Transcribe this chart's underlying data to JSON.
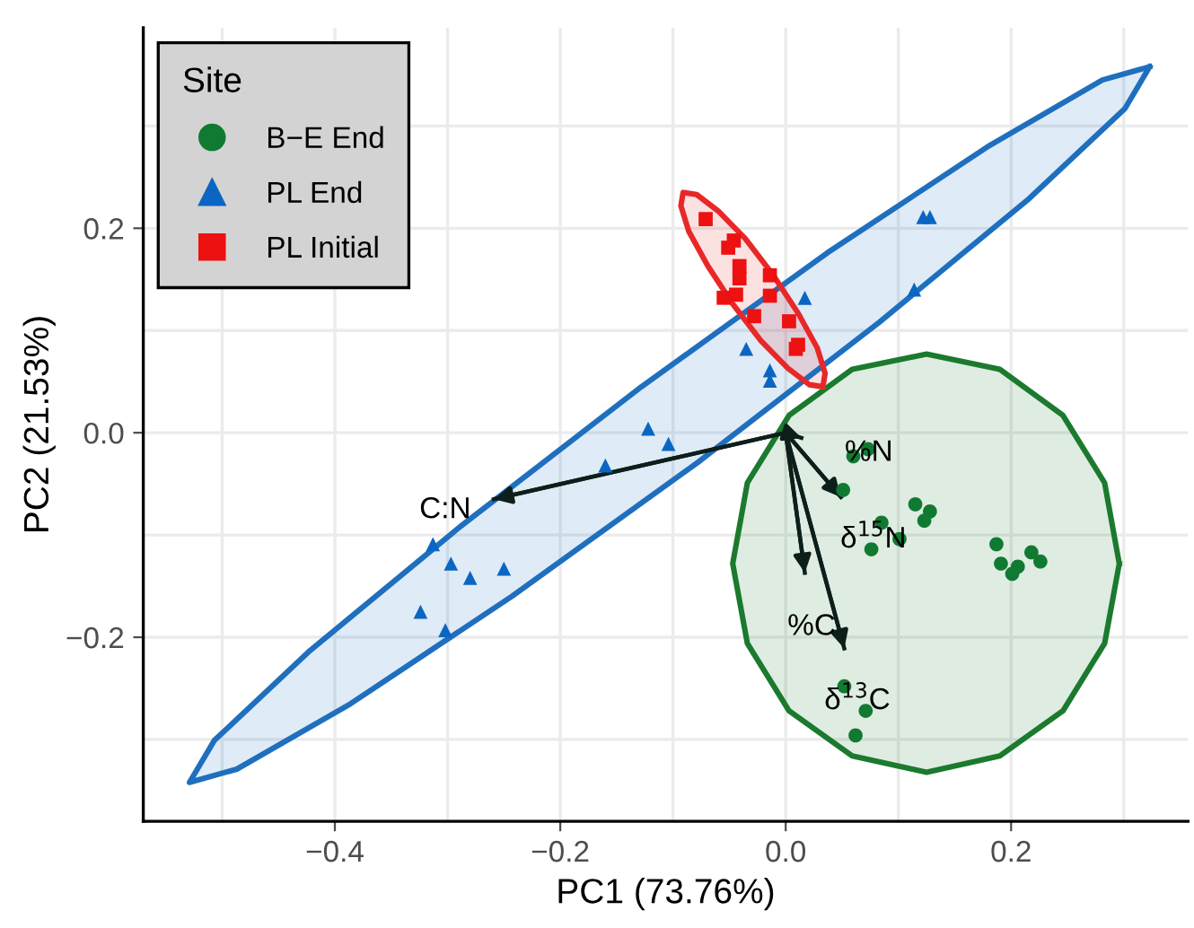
{
  "chart_data": {
    "type": "scatter",
    "xlabel": "PC1 (73.76%)",
    "ylabel": "PC2 (21.53%)",
    "legend_title": "Site",
    "xlim": [
      -0.57,
      0.357
    ],
    "ylim": [
      -0.38,
      0.396
    ],
    "xticks": [
      {
        "value": -0.4,
        "label": "−0.4"
      },
      {
        "value": -0.2,
        "label": "−0.2"
      },
      {
        "value": 0,
        "label": "0.0"
      },
      0.2
    ],
    "yticks": [
      {
        "value": -0.2,
        "label": "−0.2"
      },
      {
        "value": 0,
        "label": "0.0"
      },
      0.2
    ],
    "grid": true,
    "legend": "top left",
    "series": [
      {
        "type": "area",
        "color": "#1f6fbf",
        "x": [
          0.323,
          0.281,
          0.181,
          0.037,
          -0.128,
          -0.289,
          -0.422,
          -0.507,
          -0.529,
          -0.487,
          -0.386,
          -0.243,
          -0.078,
          0.083,
          0.216,
          0.301,
          0.323
        ],
        "values": [
          0.358,
          0.345,
          0.281,
          0.176,
          0.045,
          -0.092,
          -0.213,
          -0.301,
          -0.342,
          -0.329,
          -0.265,
          -0.16,
          -0.029,
          0.108,
          0.229,
          0.317,
          0.358
        ]
      },
      {
        "type": "area",
        "color": "#1b7a2e",
        "x": [
          0.296,
          0.283,
          0.246,
          0.19,
          0.125,
          0.059,
          0.003,
          -0.034,
          -0.047,
          -0.034,
          0.003,
          0.059,
          0.125,
          0.19,
          0.246,
          0.283,
          0.296
        ],
        "values": [
          -0.128,
          -0.049,
          0.017,
          0.062,
          0.077,
          0.062,
          0.017,
          -0.049,
          -0.128,
          -0.206,
          -0.272,
          -0.316,
          -0.332,
          -0.316,
          -0.272,
          -0.206,
          -0.128
        ]
      },
      {
        "type": "area",
        "color": "#e82828",
        "x": [
          0.033,
          0.035,
          0.028,
          0.011,
          -0.011,
          -0.036,
          -0.06,
          -0.079,
          -0.091,
          -0.093,
          -0.086,
          -0.069,
          -0.047,
          -0.022,
          0.002,
          0.021,
          0.033
        ],
        "values": [
          0.045,
          0.058,
          0.083,
          0.117,
          0.154,
          0.19,
          0.217,
          0.233,
          0.235,
          0.222,
          0.197,
          0.163,
          0.126,
          0.09,
          0.063,
          0.047,
          0.045
        ]
      },
      {
        "name": "B−E End",
        "marker": "circle",
        "color": "#117a32",
        "x": [
          0.06,
          0.073,
          0.051,
          0.085,
          0.076,
          0.101,
          0.115,
          0.128,
          0.123,
          0.187,
          0.191,
          0.201,
          0.206,
          0.218,
          0.226,
          0.052,
          0.071,
          0.062
        ],
        "values": [
          -0.023,
          -0.016,
          -0.056,
          -0.088,
          -0.114,
          -0.104,
          -0.07,
          -0.077,
          -0.086,
          -0.109,
          -0.128,
          -0.138,
          -0.131,
          -0.117,
          -0.126,
          -0.248,
          -0.272,
          -0.296
        ]
      },
      {
        "name": "PL End",
        "marker": "triangle",
        "color": "#0a66c2",
        "x": [
          0.122,
          0.128,
          0.114,
          0.017,
          -0.035,
          -0.014,
          -0.014,
          -0.122,
          -0.104,
          -0.16,
          -0.313,
          -0.297,
          -0.28,
          -0.25,
          -0.324,
          -0.302
        ],
        "values": [
          0.211,
          0.211,
          0.14,
          0.132,
          0.082,
          0.061,
          0.051,
          0.004,
          -0.011,
          -0.032,
          -0.109,
          -0.128,
          -0.142,
          -0.133,
          -0.175,
          -0.193
        ]
      },
      {
        "name": "PL Initial",
        "marker": "square",
        "color": "#ee1111",
        "x": [
          -0.071,
          -0.046,
          -0.051,
          -0.041,
          -0.041,
          -0.014,
          -0.055,
          -0.044,
          -0.014,
          -0.028,
          0.003,
          0.011,
          0.009
        ],
        "values": [
          0.209,
          0.188,
          0.181,
          0.163,
          0.151,
          0.154,
          0.132,
          0.135,
          0.134,
          0.114,
          0.109,
          0.086,
          0.082
        ]
      },
      {
        "type": "line",
        "color": "#0d1f1a",
        "x": [
          0,
          0.014
        ],
        "values": [
          0,
          -0.005
        ]
      },
      {
        "type": "line",
        "color": "#0d1f1a",
        "x": [
          0,
          0.049
        ],
        "values": [
          0,
          -0.063
        ]
      },
      {
        "type": "line",
        "color": "#0d1f1a",
        "x": [
          0,
          0.017
        ],
        "values": [
          0,
          -0.137
        ]
      },
      {
        "type": "line",
        "color": "#0d1f1a",
        "x": [
          0,
          0.052
        ],
        "values": [
          0,
          -0.211
        ]
      },
      {
        "type": "line",
        "color": "#0d1f1a",
        "x": [
          0,
          -0.259
        ],
        "values": [
          0,
          -0.065
        ]
      }
    ],
    "annotations": [
      "%N",
      "δ$^{15}$N",
      "%C",
      "δ$^{13}$C",
      "C:N"
    ]
  }
}
